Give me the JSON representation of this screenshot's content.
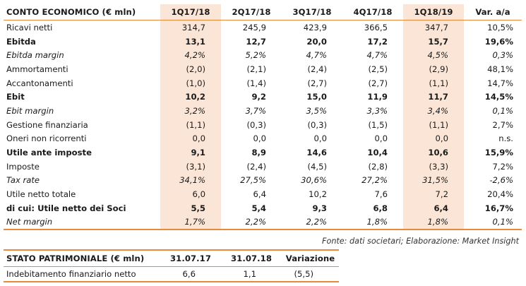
{
  "conto_economico": {
    "header": [
      "CONTO ECONOMICO (€ mln)",
      "1Q17/18",
      "2Q17/18",
      "3Q17/18",
      "4Q17/18",
      "1Q18/19",
      "Var. a/a"
    ],
    "rows": [
      {
        "style": "",
        "cells": [
          "Ricavi netti",
          "314,7",
          "245,9",
          "423,9",
          "366,5",
          "347,7",
          "10,5%"
        ]
      },
      {
        "style": "b",
        "cells": [
          "Ebitda",
          "13,1",
          "12,7",
          "20,0",
          "17,2",
          "15,7",
          "19,6%"
        ]
      },
      {
        "style": "i",
        "cells": [
          "Ebitda margin",
          "4,2%",
          "5,2%",
          "4,7%",
          "4,7%",
          "4,5%",
          "0,3%"
        ]
      },
      {
        "style": "",
        "cells": [
          "Ammortamenti",
          "(2,0)",
          "(2,1)",
          "(2,4)",
          "(2,5)",
          "(2,9)",
          "48,1%"
        ]
      },
      {
        "style": "",
        "cells": [
          "Accantonamenti",
          "(1,0)",
          "(1,4)",
          "(2,7)",
          "(2,7)",
          "(1,1)",
          "14,7%"
        ]
      },
      {
        "style": "b",
        "cells": [
          "Ebit",
          "10,2",
          "9,2",
          "15,0",
          "11,9",
          "11,7",
          "14,5%"
        ]
      },
      {
        "style": "i",
        "cells": [
          "Ebit margin",
          "3,2%",
          "3,7%",
          "3,5%",
          "3,3%",
          "3,4%",
          "0,1%"
        ]
      },
      {
        "style": "",
        "cells": [
          "Gestione finanziaria",
          "(1,1)",
          "(0,3)",
          "(0,3)",
          "(1,5)",
          "(1,1)",
          "2,7%"
        ]
      },
      {
        "style": "",
        "cells": [
          "Oneri non ricorrenti",
          "0,0",
          "0,0",
          "0,0",
          "0,0",
          "0,0",
          "n.s."
        ]
      },
      {
        "style": "b",
        "cells": [
          "Utile ante imposte",
          "9,1",
          "8,9",
          "14,6",
          "10,4",
          "10,6",
          "15,9%"
        ]
      },
      {
        "style": "",
        "cells": [
          "Imposte",
          "(3,1)",
          "(2,4)",
          "(4,5)",
          "(2,8)",
          "(3,3)",
          "7,2%"
        ]
      },
      {
        "style": "i",
        "cells": [
          "Tax rate",
          "34,1%",
          "27,5%",
          "30,6%",
          "27,2%",
          "31,5%",
          "-2,6%"
        ]
      },
      {
        "style": "",
        "cells": [
          "Utile netto totale",
          "6,0",
          "6,4",
          "10,2",
          "7,6",
          "7,2",
          "20,4%"
        ]
      },
      {
        "style": "b",
        "cells": [
          "di cui: Utile netto dei Soci",
          "5,5",
          "5,4",
          "9,3",
          "6,8",
          "6,4",
          "16,7%"
        ]
      },
      {
        "style": "i",
        "cells": [
          "Net margin",
          "1,7%",
          "2,2%",
          "2,2%",
          "1,8%",
          "1,8%",
          "0,1%"
        ]
      }
    ],
    "source": "Fonte: dati societari; Elaborazione: Market Insight"
  },
  "stato_patrimoniale": {
    "header": [
      "STATO PATRIMONIALE (€ mln)",
      "31.07.17",
      "31.07.18",
      "Variazione"
    ],
    "rows": [
      {
        "cells": [
          "Indebitamento finanziario netto",
          "6,6",
          "1,1",
          "(5,5)"
        ]
      }
    ]
  },
  "colors": {
    "accent": "#e98a3a",
    "highlight": "#fbe5d6"
  }
}
